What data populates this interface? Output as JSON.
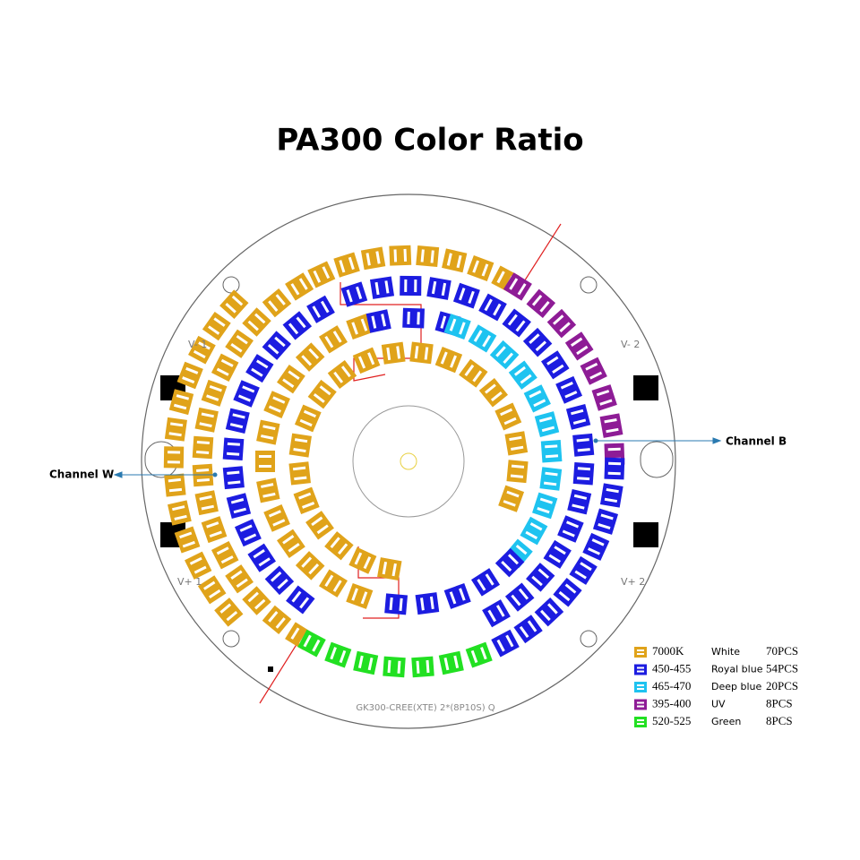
{
  "title": "PA300 Color Ratio",
  "board": {
    "bottom_label": "GK300-CREE(XTE) 2*(8P10S)  Q",
    "terminals": [
      "V- 1",
      "V- 2",
      "V+ 1",
      "V+ 2"
    ],
    "channels": [
      "Channel W",
      "Channel B"
    ]
  },
  "legend": [
    {
      "color": "#e0a31a",
      "code": "7000K",
      "name": "White",
      "count": "70PCS"
    },
    {
      "color": "#1c1ce0",
      "code": "450-455",
      "name": "Royal blue",
      "count": "54PCS"
    },
    {
      "color": "#1ec3f0",
      "code": "465-470",
      "name": "Deep blue",
      "count": "20PCS"
    },
    {
      "color": "#8e1c96",
      "code": "395-400",
      "name": "UV",
      "count": "8PCS"
    },
    {
      "color": "#22e022",
      "code": "520-525",
      "name": "Green",
      "count": "8PCS"
    }
  ]
}
